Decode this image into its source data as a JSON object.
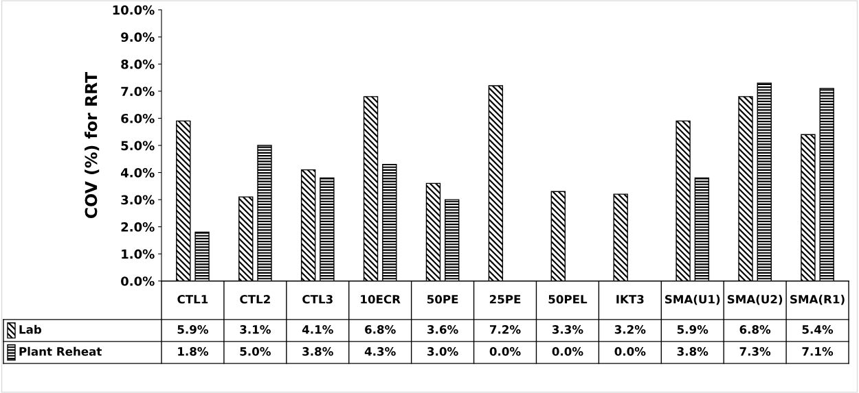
{
  "chart_data": {
    "type": "bar",
    "ylabel": "COV (%) for RRT",
    "categories": [
      "CTL1",
      "CTL2",
      "CTL3",
      "10ECR",
      "50PE",
      "25PE",
      "50PEL",
      "IKT3",
      "SMA(U1)",
      "SMA(U2)",
      "SMA(R1)"
    ],
    "series": [
      {
        "name": "Lab",
        "color": "#000000",
        "values": [
          5.9,
          3.1,
          4.1,
          6.8,
          3.6,
          7.2,
          3.3,
          3.2,
          5.9,
          6.8,
          5.4
        ],
        "value_labels": [
          "5.9%",
          "3.1%",
          "4.1%",
          "6.8%",
          "3.6%",
          "7.2%",
          "3.3%",
          "3.2%",
          "5.9%",
          "6.8%",
          "5.4%"
        ]
      },
      {
        "name": "Plant Reheat",
        "color": "#000000",
        "values": [
          1.8,
          5.0,
          3.8,
          4.3,
          3.0,
          0.0,
          0.0,
          0.0,
          3.8,
          7.3,
          7.1
        ],
        "value_labels": [
          "1.8%",
          "5.0%",
          "3.8%",
          "4.3%",
          "3.0%",
          "0.0%",
          "0.0%",
          "0.0%",
          "3.8%",
          "7.3%",
          "7.1%"
        ]
      }
    ],
    "ylim": [
      0,
      10
    ],
    "yticks": [
      {
        "value": 0,
        "label": "0.0%"
      },
      {
        "value": 1,
        "label": "1.0%"
      },
      {
        "value": 2,
        "label": "2.0%"
      },
      {
        "value": 3,
        "label": "3.0%"
      },
      {
        "value": 4,
        "label": "4.0%"
      },
      {
        "value": 5,
        "label": "5.0%"
      },
      {
        "value": 6,
        "label": "6.0%"
      },
      {
        "value": 7,
        "label": "7.0%"
      },
      {
        "value": 8,
        "label": "8.0%"
      },
      {
        "value": 9,
        "label": "9.0%"
      },
      {
        "value": 10,
        "label": "10.0%"
      }
    ],
    "grid": false,
    "legend": "bottom left"
  }
}
